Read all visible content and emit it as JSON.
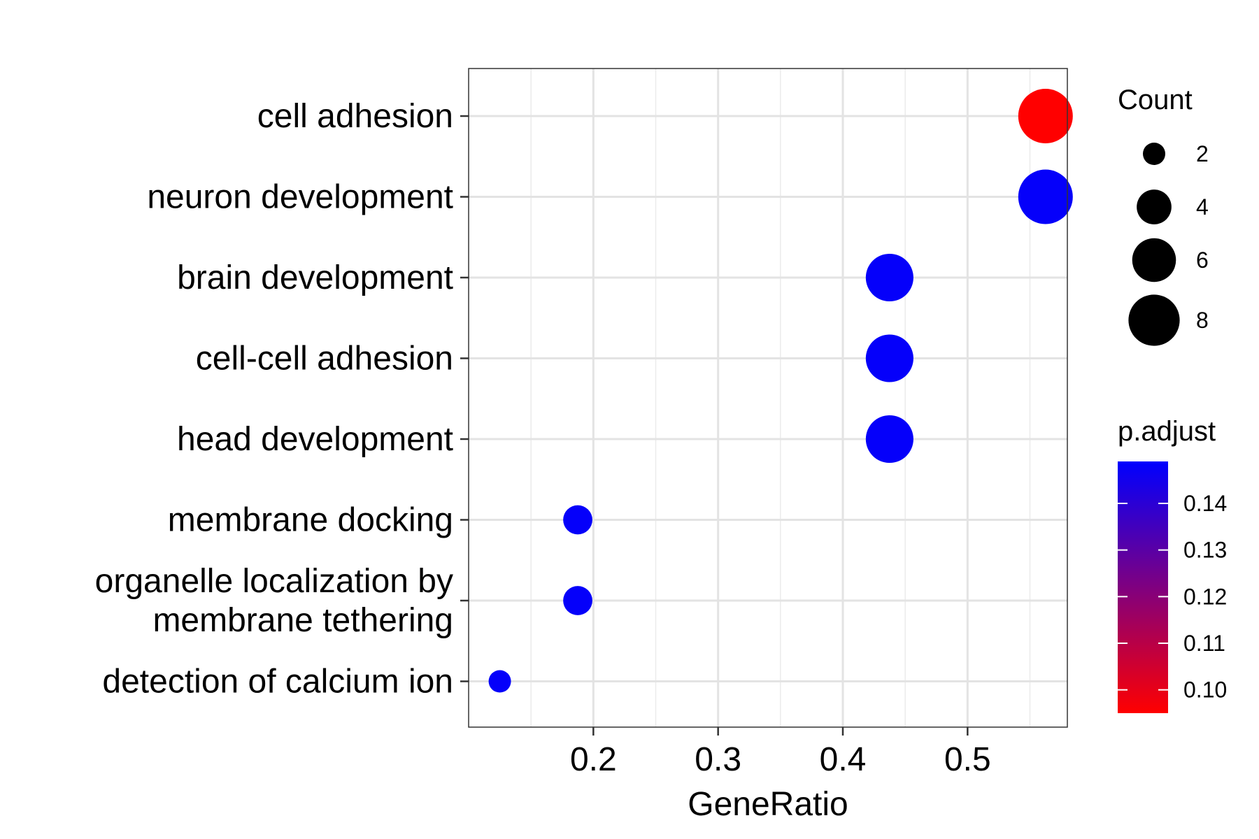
{
  "chart_data": {
    "type": "scatter",
    "title": "",
    "xlabel": "GeneRatio",
    "ylabel": "",
    "xlim": [
      0.1,
      0.58
    ],
    "x_ticks": [
      {
        "value": 0.2,
        "label": "0.2"
      },
      {
        "value": 0.3,
        "label": "0.3"
      },
      {
        "value": 0.4,
        "label": "0.4"
      },
      {
        "value": 0.5,
        "label": "0.5"
      }
    ],
    "x_minor_ticks": [
      0.15,
      0.25,
      0.35,
      0.45,
      0.55
    ],
    "grid": true,
    "categories": [
      "cell adhesion",
      "neuron development",
      "brain development",
      "cell-cell adhesion",
      "head development",
      "membrane docking",
      "organelle localization by\nmembrane tethering",
      "detection of calcium ion"
    ],
    "points": [
      {
        "term": "cell adhesion",
        "gene_ratio": 0.5625,
        "count": 9,
        "p_adjust": 0.095
      },
      {
        "term": "neuron development",
        "gene_ratio": 0.5625,
        "count": 9,
        "p_adjust": 0.148
      },
      {
        "term": "brain development",
        "gene_ratio": 0.4375,
        "count": 7,
        "p_adjust": 0.148
      },
      {
        "term": "cell-cell adhesion",
        "gene_ratio": 0.4375,
        "count": 7,
        "p_adjust": 0.148
      },
      {
        "term": "head development",
        "gene_ratio": 0.4375,
        "count": 7,
        "p_adjust": 0.148
      },
      {
        "term": "membrane docking",
        "gene_ratio": 0.1875,
        "count": 3,
        "p_adjust": 0.148
      },
      {
        "term": "organelle localization by\nmembrane tethering",
        "gene_ratio": 0.1875,
        "count": 3,
        "p_adjust": 0.148
      },
      {
        "term": "detection of calcium ion",
        "gene_ratio": 0.125,
        "count": 2,
        "p_adjust": 0.148
      }
    ],
    "size_legend": {
      "title": "Count",
      "entries": [
        {
          "value": 2,
          "label": "2"
        },
        {
          "value": 4,
          "label": "4"
        },
        {
          "value": 6,
          "label": "6"
        },
        {
          "value": 8,
          "label": "8"
        }
      ],
      "count_range": [
        2,
        9
      ]
    },
    "color_legend": {
      "title": "p.adjust",
      "low_color": "#FF0000",
      "high_color": "#0000FF",
      "range": [
        0.095,
        0.149
      ],
      "ticks": [
        {
          "value": 0.1,
          "label": "0.10"
        },
        {
          "value": 0.11,
          "label": "0.11"
        },
        {
          "value": 0.12,
          "label": "0.12"
        },
        {
          "value": 0.13,
          "label": "0.13"
        },
        {
          "value": 0.14,
          "label": "0.14"
        }
      ]
    },
    "legend_placement": "right"
  }
}
